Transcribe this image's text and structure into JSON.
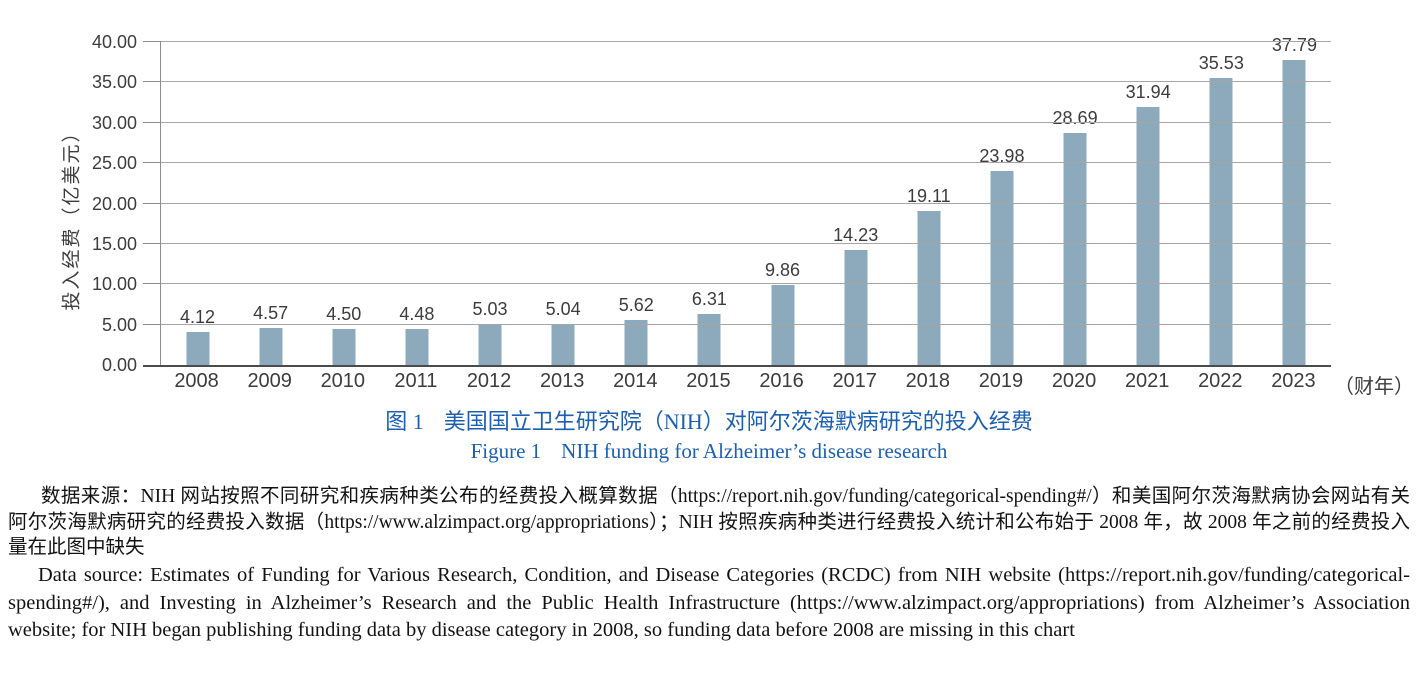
{
  "chart_data": {
    "type": "bar",
    "categories": [
      "2008",
      "2009",
      "2010",
      "2011",
      "2012",
      "2013",
      "2014",
      "2015",
      "2016",
      "2017",
      "2018",
      "2019",
      "2020",
      "2021",
      "2022",
      "2023"
    ],
    "values": [
      4.12,
      4.57,
      4.5,
      4.48,
      5.03,
      5.04,
      5.62,
      6.31,
      9.86,
      14.23,
      19.11,
      23.98,
      28.69,
      31.94,
      35.53,
      37.79
    ],
    "value_labels": [
      "4.12",
      "4.57",
      "4.50",
      "4.48",
      "5.03",
      "5.04",
      "5.62",
      "6.31",
      "9.86",
      "14.23",
      "19.11",
      "23.98",
      "28.69",
      "31.94",
      "35.53",
      "37.79"
    ],
    "ylabel": "投入经费（亿美元）",
    "x_unit_label": "（财年）",
    "y_ticks": [
      "0.00",
      "5.00",
      "10.00",
      "15.00",
      "20.00",
      "25.00",
      "30.00",
      "35.00",
      "40.00"
    ],
    "ylim": [
      0,
      40
    ],
    "grid": true,
    "legend": "none",
    "bar_color": "#8caabc"
  },
  "caption": {
    "accent_color": "#1d5fae",
    "zh_label": "图 1",
    "zh_text": "美国国立卫生研究院（NIH）对阿尔茨海默病研究的投入经费",
    "en_label": "Figure 1",
    "en_text": "NIH funding for Alzheimer’s disease research"
  },
  "source_note": {
    "zh": "数据来源：NIH 网站按照不同研究和疾病种类公布的经费投入概算数据（https://report.nih.gov/funding/categorical-spending#/）和美国阿尔茨海默病协会网站有关阿尔茨海默病研究的经费投入数据（https://www.alzimpact.org/appropriations）；NIH 按照疾病种类进行经费投入统计和公布始于 2008 年，故 2008 年之前的经费投入量在此图中缺失",
    "en": "Data source: Estimates of Funding for Various Research, Condition, and Disease Categories (RCDC) from NIH website (https://report.nih.gov/funding/categorical-spending#/), and Investing in Alzheimer’s Research and the Public Health Infrastructure (https://www.alzimpact.org/appropriations) from Alzheimer’s Association website; for NIH began publishing funding data by disease category in 2008, so funding data before 2008 are missing in this chart"
  }
}
